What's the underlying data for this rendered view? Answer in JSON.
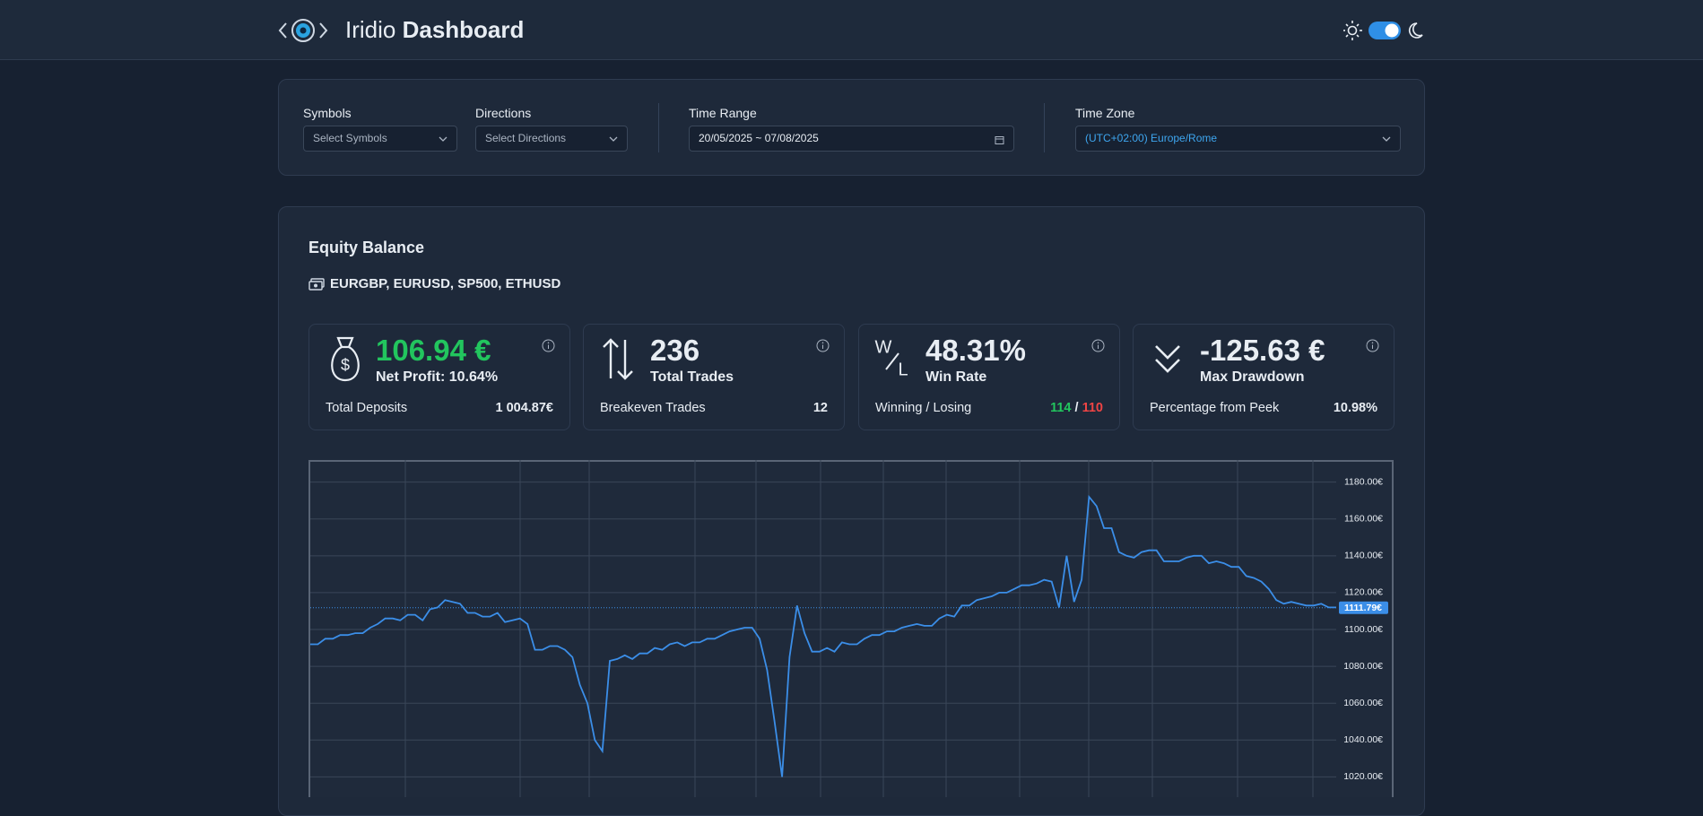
{
  "header": {
    "title_light": "Iridio",
    "title_bold": "Dashboard"
  },
  "filters": {
    "symbols": {
      "label": "Symbols",
      "placeholder": "Select Symbols"
    },
    "directions": {
      "label": "Directions",
      "placeholder": "Select Directions"
    },
    "time_range": {
      "label": "Time Range",
      "value": "20/05/2025 ~ 07/08/2025"
    },
    "time_zone": {
      "label": "Time Zone",
      "value": "(UTC+02:00) Europe/Rome"
    }
  },
  "equity": {
    "title": "Equity Balance",
    "symbols": "EURGBP, EURUSD, SP500, ETHUSD",
    "stats": [
      {
        "icon": "$",
        "value": "106.94 €",
        "label": "Net Profit: 10.64%",
        "footer_label": "Total Deposits",
        "footer_value": "1 004.87€"
      },
      {
        "value": "236",
        "label": "Total Trades",
        "footer_label": "Breakeven Trades",
        "footer_value": "12"
      },
      {
        "icon_top": "W",
        "icon_bottom": "L",
        "value": "48.31%",
        "label": "Win Rate",
        "footer_label": "Winning / Losing",
        "winning": "114",
        "separator": "/",
        "losing": "110"
      },
      {
        "value": "-125.63 €",
        "label": "Max Drawdown",
        "footer_label": "Percentage from Peek",
        "footer_value": "10.98%"
      }
    ]
  },
  "chart_data": {
    "type": "line",
    "color": "#3b8ee8",
    "grid": true,
    "ylim": [
      1009,
      1192
    ],
    "yticks": [
      {
        "value": 1020,
        "label": "1020.00€"
      },
      {
        "value": 1040,
        "label": "1040.00€"
      },
      {
        "value": 1060,
        "label": "1060.00€"
      },
      {
        "value": 1080,
        "label": "1080.00€"
      },
      {
        "value": 1100,
        "label": "1100.00€"
      },
      {
        "value": 1120,
        "label": "1120.00€"
      },
      {
        "value": 1140,
        "label": "1140.00€"
      },
      {
        "value": 1160,
        "label": "1160.00€"
      },
      {
        "value": 1180,
        "label": "1180.00€"
      }
    ],
    "price_line": {
      "value": 1111.79,
      "label": "1111.79€"
    },
    "values": [
      1092,
      1092,
      1095,
      1095,
      1097,
      1097,
      1098,
      1098,
      1101,
      1103,
      1106,
      1106,
      1105,
      1108,
      1108,
      1105,
      1111,
      1112,
      1116,
      1115,
      1114,
      1109,
      1109,
      1107,
      1107,
      1109,
      1104,
      1105,
      1106,
      1103,
      1089,
      1089,
      1091,
      1091,
      1089,
      1085,
      1070,
      1060,
      1040,
      1034,
      1083,
      1084,
      1086,
      1084,
      1087,
      1087,
      1090,
      1089,
      1092,
      1093,
      1091,
      1093,
      1093,
      1095,
      1095,
      1097,
      1099,
      1100,
      1101,
      1101,
      1095,
      1078,
      1050,
      1020,
      1085,
      1113,
      1098,
      1088,
      1088,
      1090,
      1088,
      1093,
      1092,
      1092,
      1095,
      1097,
      1097,
      1099,
      1099,
      1101,
      1102,
      1103,
      1102,
      1102,
      1106,
      1108,
      1107,
      1113,
      1113,
      1116,
      1117,
      1118,
      1120,
      1120,
      1122,
      1124,
      1124,
      1125,
      1127,
      1126,
      1112,
      1140,
      1115,
      1127,
      1172,
      1167,
      1155,
      1155,
      1142,
      1140,
      1139,
      1142,
      1143,
      1143,
      1137,
      1137,
      1137,
      1139,
      1140,
      1140,
      1136,
      1137,
      1136,
      1134,
      1134,
      1129,
      1128,
      1126,
      1122,
      1116,
      1114,
      1115,
      1114,
      1113,
      1113,
      1114,
      1112,
      1112
    ]
  }
}
